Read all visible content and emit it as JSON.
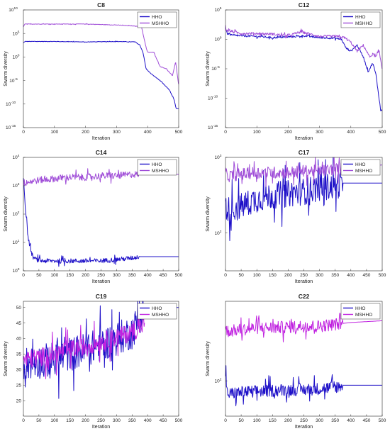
{
  "chart_data": [
    {
      "type": "line",
      "title": "C8",
      "xlabel": "Iteration",
      "ylabel": "Swarm diversity",
      "log": true,
      "xlim": [
        0,
        500
      ],
      "ylim_exp": [
        -15,
        10
      ],
      "xticks": [
        "0",
        "100",
        "200",
        "300",
        "400",
        "500"
      ],
      "yticks": [
        {
          "e": -15,
          "label": "10",
          "sup": "-15"
        },
        {
          "e": -10,
          "label": "10",
          "sup": "-10"
        },
        {
          "e": -5,
          "label": "10",
          "sup": "-5"
        },
        {
          "e": 0,
          "label": "10",
          "sup": "0"
        },
        {
          "e": 5,
          "label": "10",
          "sup": "5"
        },
        {
          "e": 10,
          "label": "10",
          "sup": "10"
        }
      ],
      "legend": "top-right",
      "series": [
        {
          "name": "HHO",
          "color": "#1e10c8",
          "x": [
            0,
            5,
            100,
            200,
            300,
            360,
            375,
            385,
            395,
            410,
            440,
            470,
            485,
            492,
            500
          ],
          "y": [
            3,
            3.3,
            3.3,
            3.2,
            3.3,
            3.2,
            2.5,
            1,
            -2.5,
            -3.5,
            -5,
            -7,
            -9,
            -11,
            -11
          ]
        },
        {
          "name": "MSHHO",
          "color": "#a04ed8",
          "x": [
            0,
            5,
            100,
            200,
            300,
            380,
            395,
            400,
            420,
            440,
            460,
            480,
            490,
            500
          ],
          "y": [
            6.5,
            7,
            7,
            7,
            6.8,
            6.5,
            2,
            1,
            1,
            -2,
            -2.5,
            -4,
            -1,
            -6
          ]
        }
      ]
    },
    {
      "type": "line",
      "title": "C12",
      "xlabel": "Iteration",
      "ylabel": "Swarm diversity",
      "log": true,
      "xlim": [
        0,
        500
      ],
      "ylim_exp": [
        -15,
        5
      ],
      "xticks": [
        "0",
        "100",
        "200",
        "300",
        "400",
        "500"
      ],
      "yticks": [
        {
          "e": -15,
          "label": "10",
          "sup": "-15"
        },
        {
          "e": -10,
          "label": "10",
          "sup": "-10"
        },
        {
          "e": -5,
          "label": "10",
          "sup": "-5"
        },
        {
          "e": 0,
          "label": "10",
          "sup": "0"
        },
        {
          "e": 5,
          "label": "10",
          "sup": "5"
        }
      ],
      "legend": "top-right",
      "series": [
        {
          "name": "HHO",
          "color": "#1e10c8",
          "x": [
            0,
            5,
            20,
            50,
            100,
            150,
            200,
            250,
            300,
            350,
            370,
            385,
            400,
            420,
            440,
            455,
            470,
            480,
            490,
            495,
            500
          ],
          "y": [
            2,
            1,
            0.7,
            0.6,
            0.5,
            0.3,
            0.4,
            0.6,
            0.3,
            0.2,
            0,
            -1.5,
            -2,
            -1,
            -3,
            -5.5,
            -4,
            -6,
            -10,
            -12,
            -12
          ]
        },
        {
          "name": "MSHHO",
          "color": "#a04ed8",
          "x": [
            0,
            5,
            50,
            100,
            150,
            200,
            240,
            300,
            350,
            380,
            400,
            420,
            440,
            460,
            470,
            480,
            490,
            500
          ],
          "y": [
            2,
            1.5,
            1,
            1,
            0.9,
            0.6,
            1.3,
            0.5,
            0.5,
            0.3,
            -0.5,
            -2,
            -1,
            -3,
            -2.5,
            -3,
            -2,
            -5
          ]
        }
      ]
    },
    {
      "type": "line",
      "title": "C14",
      "xlabel": "Iteration",
      "ylabel": "Swarm diversity",
      "log": true,
      "xlim": [
        0,
        500
      ],
      "ylim_exp": [
        0,
        4
      ],
      "xticks": [
        "0",
        "50",
        "100",
        "150",
        "200",
        "250",
        "300",
        "350",
        "400",
        "450",
        "500"
      ],
      "yticks": [
        {
          "e": 0,
          "label": "10",
          "sup": "0"
        },
        {
          "e": 1,
          "label": "10",
          "sup": "1"
        },
        {
          "e": 2,
          "label": "10",
          "sup": "2"
        },
        {
          "e": 3,
          "label": "10",
          "sup": "3"
        },
        {
          "e": 4,
          "label": "10",
          "sup": "4"
        }
      ],
      "legend": "top-right",
      "series": [
        {
          "name": "HHO",
          "color": "#1e10c8",
          "x": [
            0,
            3,
            8,
            15,
            22,
            30,
            40,
            60,
            100,
            150,
            200,
            250,
            300,
            350,
            375,
            400,
            450,
            500
          ],
          "y": [
            3.3,
            2.8,
            2,
            1.2,
            0.8,
            0.5,
            0.4,
            0.35,
            0.35,
            0.35,
            0.35,
            0.35,
            0.4,
            0.45,
            0.5,
            0.5,
            0.5,
            0.5
          ]
        },
        {
          "name": "MSHHO",
          "color": "#a04ed8",
          "x": [
            0,
            20,
            50,
            100,
            150,
            200,
            250,
            300,
            350,
            375,
            400,
            450,
            500
          ],
          "y": [
            3.1,
            3.15,
            3.2,
            3.25,
            3.3,
            3.3,
            3.35,
            3.35,
            3.4,
            3.4,
            3.4,
            3.4,
            3.4
          ]
        }
      ]
    },
    {
      "type": "line",
      "title": "C17",
      "xlabel": "Iteration",
      "ylabel": "Swarm diversity",
      "log": true,
      "xlim": [
        0,
        500
      ],
      "ylim_exp": [
        1.5,
        3
      ],
      "xticks": [
        "0",
        "50",
        "100",
        "150",
        "200",
        "250",
        "300",
        "350",
        "400",
        "450",
        "500"
      ],
      "yticks": [
        {
          "e": 2,
          "label": "10",
          "sup": "2"
        },
        {
          "e": 3,
          "label": "10",
          "sup": "3"
        }
      ],
      "legend": "top-right",
      "series": [
        {
          "name": "HHO",
          "color": "#1e10c8",
          "x": [
            0,
            5,
            50,
            100,
            150,
            200,
            250,
            300,
            350,
            375,
            400,
            450,
            500
          ],
          "y": [
            2.4,
            2.3,
            2.35,
            2.45,
            2.5,
            2.52,
            2.55,
            2.6,
            2.62,
            2.66,
            2.66,
            2.66,
            2.66
          ]
        },
        {
          "name": "MSHHO",
          "color": "#a04ed8",
          "x": [
            0,
            5,
            50,
            100,
            150,
            200,
            250,
            300,
            350,
            375,
            400,
            450,
            500
          ],
          "y": [
            2.8,
            2.75,
            2.78,
            2.8,
            2.8,
            2.8,
            2.82,
            2.82,
            2.85,
            2.85,
            2.87,
            2.88,
            2.9
          ]
        }
      ]
    },
    {
      "type": "line",
      "title": "C19",
      "xlabel": "Iteration",
      "ylabel": "Swarm diversity",
      "log": false,
      "xlim": [
        0,
        500
      ],
      "ylim": [
        15,
        52
      ],
      "xticks": [
        "0",
        "50",
        "100",
        "150",
        "200",
        "250",
        "300",
        "350",
        "400",
        "450",
        "500"
      ],
      "yticks": [
        {
          "v": 20,
          "label": "20"
        },
        {
          "v": 25,
          "label": "25"
        },
        {
          "v": 30,
          "label": "30"
        },
        {
          "v": 35,
          "label": "35"
        },
        {
          "v": 40,
          "label": "40"
        },
        {
          "v": 45,
          "label": "45"
        },
        {
          "v": 50,
          "label": "50"
        }
      ],
      "legend": "top-right",
      "series": [
        {
          "name": "HHO",
          "color": "#1e10c8",
          "x": [
            0,
            50,
            100,
            150,
            200,
            250,
            300,
            350,
            390,
            400,
            450,
            500
          ],
          "y": [
            32,
            32.5,
            33.5,
            35,
            36.5,
            38,
            40,
            42,
            50,
            50,
            50,
            50
          ]
        },
        {
          "name": "MSHHO",
          "color": "#c022e0",
          "x": [
            0,
            50,
            100,
            150,
            200,
            250,
            300,
            350,
            380,
            390
          ],
          "y": [
            33,
            34,
            35,
            36.5,
            37.5,
            39,
            40.5,
            42,
            44,
            45
          ]
        }
      ]
    },
    {
      "type": "line",
      "title": "C22",
      "xlabel": "Iteration",
      "ylabel": "Swarm diversity",
      "log": true,
      "xlim": [
        0,
        500
      ],
      "ylim_exp": [
        1.6,
        2.9
      ],
      "xticks": [
        "0",
        "50",
        "100",
        "150",
        "200",
        "250",
        "300",
        "350",
        "400",
        "450",
        "500"
      ],
      "yticks": [
        {
          "e": 2,
          "label": "10",
          "sup": "2"
        }
      ],
      "legend": "top-right",
      "series": [
        {
          "name": "HHO",
          "color": "#1e10c8",
          "x": [
            0,
            5,
            50,
            100,
            150,
            200,
            250,
            300,
            350,
            375,
            400,
            450,
            500
          ],
          "y": [
            2.1,
            1.85,
            1.87,
            1.88,
            1.89,
            1.9,
            1.9,
            1.91,
            1.93,
            1.95,
            1.95,
            1.95,
            1.95
          ]
        },
        {
          "name": "MSHHO",
          "color": "#c022e0",
          "x": [
            0,
            5,
            50,
            100,
            150,
            200,
            250,
            300,
            350,
            375,
            400,
            450,
            500
          ],
          "y": [
            2.6,
            2.56,
            2.58,
            2.6,
            2.6,
            2.61,
            2.62,
            2.62,
            2.64,
            2.65,
            2.66,
            2.67,
            2.68
          ]
        }
      ]
    }
  ]
}
